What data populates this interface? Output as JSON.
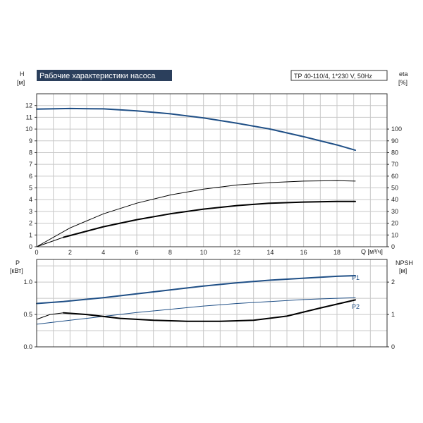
{
  "header": {
    "title": "Рабочие характеристики насоса",
    "model": "TP 40-110/4, 1*230 V, 50Hz"
  },
  "colors": {
    "header_bg": "#2b3f5c",
    "blue_curve": "#1f4f86",
    "black_curve": "#000000",
    "grid": "#c8c8c8"
  },
  "chart_data": [
    {
      "type": "line",
      "name": "pump-performance",
      "xlabel": "Q [м³/ч]",
      "ylabel_left": "H\n[м]",
      "ylabel_right": "eta\n[%]",
      "xlim": [
        0,
        21
      ],
      "ylim_left": [
        0,
        13
      ],
      "ylim_right": [
        0,
        130
      ],
      "x_ticks": [
        0,
        2,
        4,
        6,
        8,
        10,
        12,
        14,
        16,
        18
      ],
      "y_ticks_left": [
        0,
        1,
        2,
        3,
        4,
        5,
        6,
        7,
        8,
        9,
        10,
        11,
        12
      ],
      "y_ticks_right": [
        0,
        10,
        20,
        30,
        40,
        50,
        60,
        70,
        80,
        90,
        100
      ],
      "x_axis_label": "Q [м³/ч]",
      "left_axis": {
        "symbol": "H",
        "unit": "[м]"
      },
      "right_axis": {
        "symbol": "eta",
        "unit": "[%]"
      },
      "series": [
        {
          "axis": "left",
          "color": "#1f4f86",
          "width": 2,
          "x": [
            0,
            2,
            4,
            6,
            8,
            10,
            12,
            14,
            16,
            18,
            19.1
          ],
          "y": [
            11.7,
            11.75,
            11.72,
            11.55,
            11.3,
            10.95,
            10.5,
            10.0,
            9.35,
            8.65,
            8.2
          ]
        },
        {
          "axis": "right",
          "color": "#000000",
          "width": 1,
          "x": [
            0,
            2,
            4,
            6,
            8,
            10,
            12,
            14,
            16,
            18,
            19.1
          ],
          "y": [
            0,
            16,
            28,
            37,
            44,
            49,
            52.5,
            54.5,
            55.8,
            56.2,
            55.8
          ]
        },
        {
          "axis": "left",
          "color": "#000000",
          "width": 2,
          "x": [
            1.6,
            4,
            6,
            8,
            10,
            12,
            14,
            16,
            18,
            19.1
          ],
          "y": [
            0.8,
            1.7,
            2.3,
            2.8,
            3.2,
            3.5,
            3.7,
            3.8,
            3.85,
            3.85
          ]
        },
        {
          "axis": "left",
          "color": "#000000",
          "width": 1,
          "x": [
            0,
            1.6
          ],
          "y": [
            0,
            0.8
          ]
        }
      ]
    },
    {
      "type": "line",
      "name": "power-npsh",
      "xlim": [
        0,
        21
      ],
      "ylim_left": [
        0,
        1.35
      ],
      "ylim_right": [
        0,
        2.7
      ],
      "y_ticks_left": [
        0.0,
        0.5,
        1.0
      ],
      "y_ticks_left_labels": [
        "0.0",
        "0.5",
        "1.0"
      ],
      "y_ticks_right": [
        0,
        1,
        2
      ],
      "left_axis": {
        "symbol": "P",
        "unit": "[кВт]"
      },
      "right_axis": {
        "symbol": "NPSH",
        "unit": "[м]"
      },
      "series": [
        {
          "name": "P1",
          "axis": "left",
          "color": "#1f4f86",
          "width": 2,
          "x": [
            0,
            1.6,
            4,
            6,
            8,
            10,
            12,
            14,
            16,
            18,
            19.1
          ],
          "y": [
            0.67,
            0.7,
            0.76,
            0.82,
            0.88,
            0.94,
            0.99,
            1.03,
            1.06,
            1.09,
            1.1
          ]
        },
        {
          "name": "P2",
          "axis": "left",
          "color": "#1f4f86",
          "width": 1,
          "x": [
            0,
            2,
            4,
            6,
            8,
            10,
            12,
            14,
            16,
            18,
            19.1
          ],
          "y": [
            0.35,
            0.41,
            0.47,
            0.53,
            0.58,
            0.63,
            0.67,
            0.7,
            0.73,
            0.75,
            0.76
          ]
        },
        {
          "axis": "right",
          "color": "#000000",
          "width": 2,
          "x": [
            1.6,
            3,
            5,
            7,
            9,
            11,
            13,
            15,
            17,
            19.1
          ],
          "y": [
            1.05,
            1.0,
            0.88,
            0.82,
            0.79,
            0.79,
            0.82,
            0.95,
            1.2,
            1.45
          ]
        },
        {
          "axis": "right",
          "color": "#000000",
          "width": 1,
          "x": [
            0,
            0.8,
            1.6
          ],
          "y": [
            0.85,
            1.0,
            1.05
          ]
        }
      ],
      "labels": [
        "P1",
        "P2"
      ]
    }
  ]
}
